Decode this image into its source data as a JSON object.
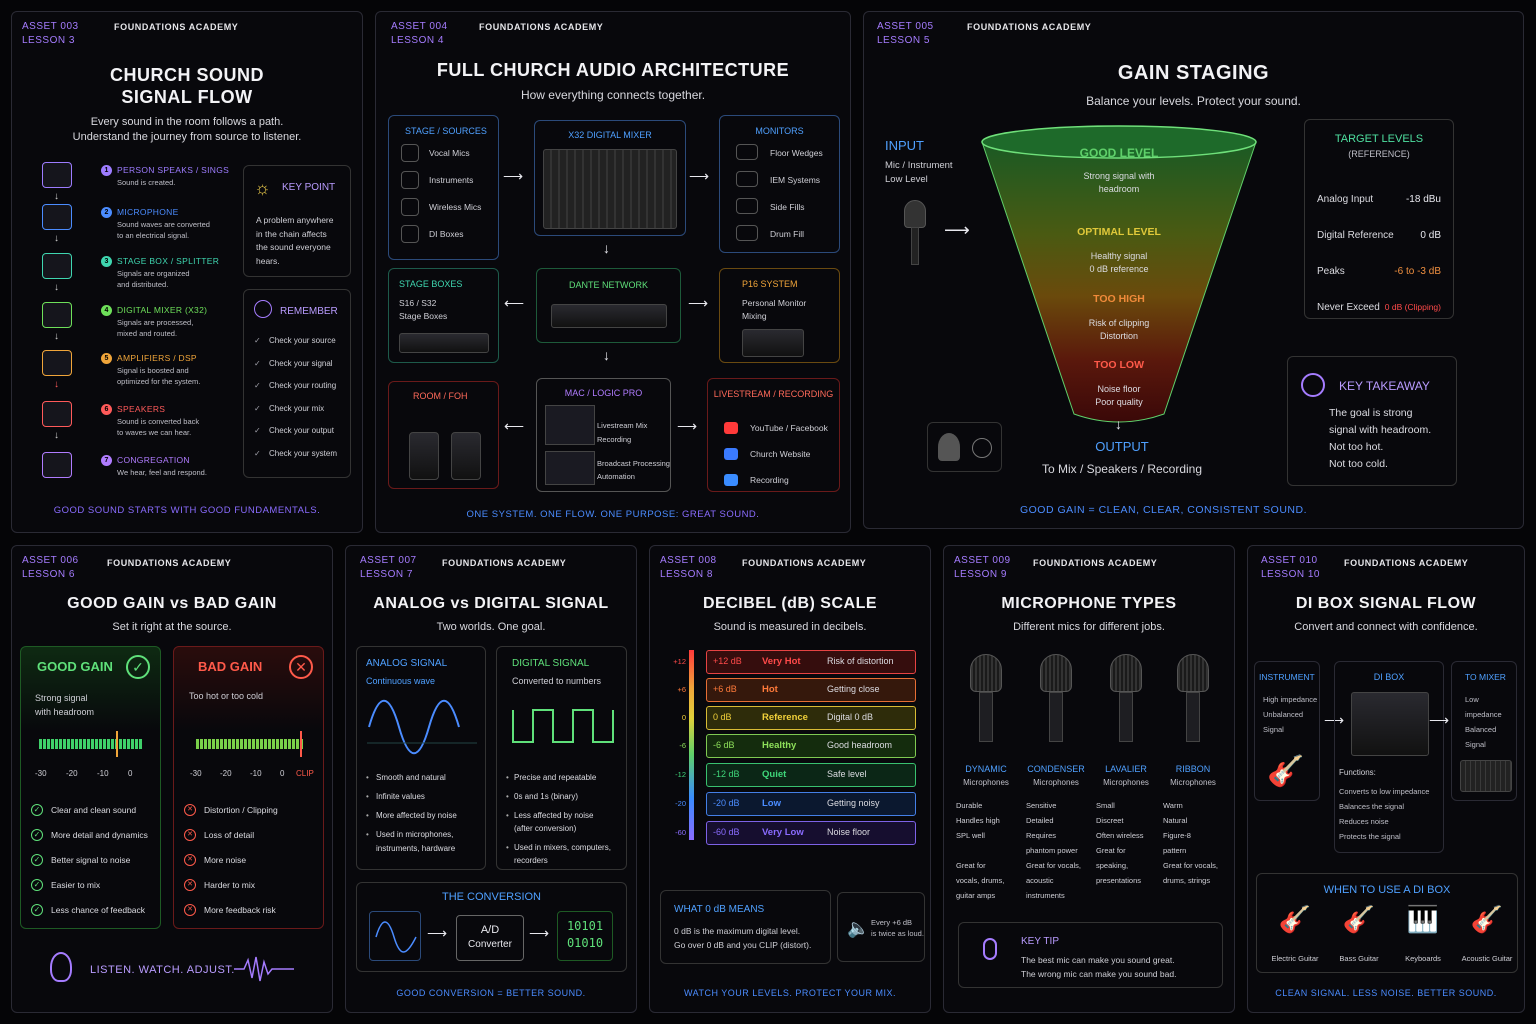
{
  "academy": "FOUNDATIONS ACADEMY",
  "p1": {
    "asset": "ASSET 003",
    "lesson": "LESSON 3",
    "title1": "CHURCH SOUND",
    "title2": "SIGNAL FLOW",
    "sub1": "Every sound in the room follows a path.",
    "sub2": "Understand the journey from source to listener.",
    "steps": [
      {
        "n": "1",
        "t": "PERSON SPEAKS / SINGS",
        "d1": "Sound is created.",
        "d2": "",
        "c": "#9d7cff"
      },
      {
        "n": "2",
        "t": "MICROPHONE",
        "d1": "Sound waves are converted",
        "d2": "to an electrical signal.",
        "c": "#4b8cff"
      },
      {
        "n": "3",
        "t": "STAGE BOX / SPLITTER",
        "d1": "Signals are organized",
        "d2": "and distributed.",
        "c": "#3fd6b0"
      },
      {
        "n": "4",
        "t": "DIGITAL MIXER (X32)",
        "d1": "Signals are processed,",
        "d2": "mixed and routed.",
        "c": "#6ee05a"
      },
      {
        "n": "5",
        "t": "AMPLIFIERS / DSP",
        "d1": "Signal is boosted and",
        "d2": "optimized for the system.",
        "c": "#f0a53a"
      },
      {
        "n": "6",
        "t": "SPEAKERS",
        "d1": "Sound is converted back",
        "d2": "to waves we can hear.",
        "c": "#ff5a5a"
      },
      {
        "n": "7",
        "t": "CONGREGATION",
        "d1": "We hear, feel and respond.",
        "d2": "",
        "c": "#b07cff"
      }
    ],
    "key_title": "KEY POINT",
    "key_text": [
      "A problem anywhere",
      "in the chain affects",
      "the sound everyone",
      "hears."
    ],
    "rem_title": "REMEMBER",
    "rem": [
      "Check your source",
      "Check your signal",
      "Check your routing",
      "Check your mix",
      "Check your output",
      "Check your system"
    ],
    "footer": "GOOD SOUND STARTS WITH GOOD FUNDAMENTALS."
  },
  "p2": {
    "asset": "ASSET 004",
    "lesson": "LESSON 4",
    "title": "FULL CHURCH AUDIO ARCHITECTURE",
    "sub": "How everything connects together.",
    "stage_title": "STAGE / SOURCES",
    "stage": [
      "Vocal Mics",
      "Instruments",
      "Wireless Mics",
      "DI Boxes"
    ],
    "mixer_title": "X32 DIGITAL MIXER",
    "mon_title": "MONITORS",
    "mon": [
      "Floor Wedges",
      "IEM Systems",
      "Side Fills",
      "Drum Fill"
    ],
    "sb_title": "STAGE BOXES",
    "sb1": "S16 / S32",
    "sb2": "Stage Boxes",
    "dante": "DANTE NETWORK",
    "p16_title": "P16 SYSTEM",
    "p16_1": "Personal Monitor",
    "p16_2": "Mixing",
    "foh_title": "ROOM / FOH",
    "mac_title": "MAC / LOGIC PRO",
    "mac": [
      "Livestream Mix",
      "Recording",
      "Broadcast Processing",
      "Automation"
    ],
    "live_title": "LIVESTREAM / RECORDING",
    "live": [
      "YouTube / Facebook",
      "Church Website",
      "Recording"
    ],
    "footer_a": "ONE SYSTEM.  ONE FLOW.  ONE PURPOSE: ",
    "footer_b": "GREAT SOUND."
  },
  "p3": {
    "asset": "ASSET 005",
    "lesson": "LESSON 5",
    "title": "GAIN STAGING",
    "sub": "Balance your levels. Protect your sound.",
    "input": "INPUT",
    "input1": "Mic / Instrument",
    "input2": "Low Level",
    "levels": [
      {
        "t": "GOOD LEVEL",
        "d1": "Strong signal with",
        "d2": "headroom",
        "c": "#5fd06a"
      },
      {
        "t": "OPTIMAL LEVEL",
        "d1": "Healthy signal",
        "d2": "0 dB reference",
        "c": "#e0c83a"
      },
      {
        "t": "TOO HIGH",
        "d1": "Risk of clipping",
        "d2": "Distortion",
        "c": "#f08a3a"
      },
      {
        "t": "TOO LOW",
        "d1": "Noise floor",
        "d2": "Poor quality",
        "c": "#ff5a4a"
      }
    ],
    "output": "OUTPUT",
    "output1": "To Mix / Speakers / Recording",
    "tl_title": "TARGET LEVELS",
    "tl_sub": "(REFERENCE)",
    "tl": [
      {
        "k": "Analog Input",
        "v": "-18 dBu",
        "c": "#e8e8ee"
      },
      {
        "k": "Digital Reference",
        "v": "0 dB",
        "c": "#e8e8ee"
      },
      {
        "k": "Peaks",
        "v": "-6 to -3 dB",
        "c": "#f09040"
      },
      {
        "k": "Never Exceed",
        "v": "0 dB (Clipping)",
        "c": "#ff4a4a"
      }
    ],
    "kt_title": "KEY TAKEAWAY",
    "kt": [
      "The goal is strong",
      "signal with headroom.",
      "Not too hot.",
      "Not too cold."
    ],
    "footer": "GOOD GAIN = CLEAN, CLEAR, CONSISTENT SOUND."
  },
  "p4": {
    "asset": "ASSET 006",
    "lesson": "LESSON 6",
    "title": "GOOD GAIN vs BAD GAIN",
    "sub": "Set it right at the source.",
    "good_title": "GOOD GAIN",
    "good_d1": "Strong signal",
    "good_d2": "with headroom",
    "bad_title": "BAD GAIN",
    "bad_d": "Too hot or too cold",
    "scale": [
      "-30",
      "-20",
      "-10",
      "0"
    ],
    "clip": "CLIP",
    "good": [
      "Clear and clean sound",
      "More detail and dynamics",
      "Better signal to noise",
      "Easier to mix",
      "Less chance of feedback"
    ],
    "bad": [
      "Distortion / Clipping",
      "Loss of detail",
      "More noise",
      "Harder to mix",
      "More feedback risk"
    ],
    "listen": "LISTEN. WATCH. ADJUST."
  },
  "p5": {
    "asset": "ASSET 007",
    "lesson": "LESSON 7",
    "title": "ANALOG vs DIGITAL SIGNAL",
    "sub": "Two worlds. One goal.",
    "an_title": "ANALOG SIGNAL",
    "an_sub": "Continuous wave",
    "dg_title": "DIGITAL SIGNAL",
    "dg_sub": "Converted to numbers",
    "an": [
      "Smooth and natural",
      "Infinite values",
      "More affected by noise",
      "Used in microphones,",
      "instruments, hardware"
    ],
    "dg": [
      "Precise and repeatable",
      "0s and 1s (binary)",
      "Less affected by noise",
      "(after conversion)",
      "Used in mixers, computers,",
      "recorders"
    ],
    "conv_title": "THE CONVERSION",
    "ad1": "A/D",
    "ad2": "Converter",
    "bin1": "10101",
    "bin2": "01010",
    "footer": "GOOD CONVERSION = BETTER SOUND."
  },
  "p6": {
    "asset": "ASSET 008",
    "lesson": "LESSON 8",
    "title": "DECIBEL (dB) SCALE",
    "sub": "Sound is measured in decibels.",
    "ticks": [
      "+12",
      "+6",
      "0",
      "-6",
      "-12",
      "-20",
      "-60"
    ],
    "rows": [
      {
        "db": "+12 dB",
        "name": "Very Hot",
        "desc": "Risk of distortion",
        "c": "#ff4a4a",
        "bg": "#3a0e0e"
      },
      {
        "db": "+6 dB",
        "name": "Hot",
        "desc": "Getting close",
        "c": "#ff7a3a",
        "bg": "#3a1a0c"
      },
      {
        "db": "0 dB",
        "name": "Reference",
        "desc": "Digital 0 dB",
        "c": "#f0d03a",
        "bg": "#33300a"
      },
      {
        "db": "-6 dB",
        "name": "Healthy",
        "desc": "Good headroom",
        "c": "#8ee05a",
        "bg": "#16300e"
      },
      {
        "db": "-12 dB",
        "name": "Quiet",
        "desc": "Safe level",
        "c": "#3fd67a",
        "bg": "#0c2a18"
      },
      {
        "db": "-20 dB",
        "name": "Low",
        "desc": "Getting noisy",
        "c": "#4b8cff",
        "bg": "#0c1a33"
      },
      {
        "db": "-60 dB",
        "name": "Very Low",
        "desc": "Noise floor",
        "c": "#8a6cff",
        "bg": "#180f33"
      }
    ],
    "w_title": "WHAT 0 dB MEANS",
    "w1": "0 dB is the maximum digital level.",
    "w2": "Go over 0 dB and you CLIP (distort).",
    "every1": "Every +6 dB",
    "every2": "is twice as loud.",
    "footer": "WATCH YOUR LEVELS.  PROTECT YOUR MIX."
  },
  "p7": {
    "asset": "ASSET 009",
    "lesson": "LESSON 9",
    "title": "MICROPHONE TYPES",
    "sub": "Different mics for different jobs.",
    "mics": [
      {
        "t": "DYNAMIC",
        "s": "Microphones",
        "f": [
          "Durable",
          "Handles high",
          "SPL well",
          "",
          "Great for",
          "vocals, drums,",
          "guitar amps"
        ]
      },
      {
        "t": "CONDENSER",
        "s": "Microphones",
        "f": [
          "Sensitive",
          "Detailed",
          "Requires",
          "phantom power",
          "Great for vocals,",
          "acoustic",
          "instruments"
        ]
      },
      {
        "t": "LAVALIER",
        "s": "Microphones",
        "f": [
          "Small",
          "Discreet",
          "Often wireless",
          "Great for",
          "speaking,",
          "presentations"
        ]
      },
      {
        "t": "RIBBON",
        "s": "Microphones",
        "f": [
          "Warm",
          "Natural",
          "Figure-8",
          "pattern",
          "Great for vocals,",
          "drums, strings"
        ]
      }
    ],
    "tip_title": "KEY TIP",
    "tip1": "The best mic can make you sound great.",
    "tip2": "The wrong mic can make you sound bad."
  },
  "p8": {
    "asset": "ASSET 010",
    "lesson": "LESSON 10",
    "title": "DI BOX SIGNAL FLOW",
    "sub": "Convert and connect with confidence.",
    "inst_title": "INSTRUMENT",
    "inst": [
      "High impedance",
      "Unbalanced",
      "Signal"
    ],
    "di_title": "DI BOX",
    "mix_title": "TO MIXER",
    "mix": [
      "Low impedance",
      "Balanced",
      "Signal"
    ],
    "fn_title": "Functions:",
    "fn": [
      "Converts to low impedance",
      "Balances the signal",
      "Reduces noise",
      "Protects the signal"
    ],
    "when_title": "WHEN TO USE A DI BOX",
    "when": [
      "Electric Guitar",
      "Bass Guitar",
      "Keyboards",
      "Acoustic Guitar"
    ],
    "footer": "CLEAN SIGNAL. LESS NOISE. BETTER SOUND."
  },
  "colors": {
    "purple": "#a57cff",
    "blue": "#4b8cff",
    "green": "#3fd06a",
    "red": "#ff4a4a"
  }
}
